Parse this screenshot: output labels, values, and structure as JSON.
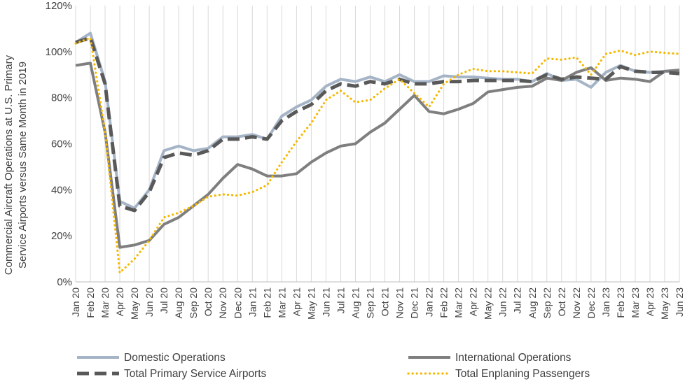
{
  "chart_data": {
    "type": "line",
    "title": "",
    "xlabel": "",
    "ylabel_lines": [
      "Commercial Aircraft Operations at U.S. Primary",
      "Service Airports versus Same Month in 2019"
    ],
    "ylim": [
      0,
      120
    ],
    "y_ticks": [
      0,
      20,
      40,
      60,
      80,
      100,
      120
    ],
    "y_tick_labels": [
      "0%",
      "20%",
      "40%",
      "60%",
      "80%",
      "100%",
      "120%"
    ],
    "grid": "vertical",
    "legend_position": "bottom",
    "categories": [
      "Jan 20",
      "Feb 20",
      "Mar 20",
      "Apr 20",
      "May 20",
      "Jun 20",
      "Jul 20",
      "Aug 20",
      "Sep 20",
      "Oct 20",
      "Nov 20",
      "Dec 20",
      "Jan 21",
      "Feb 21",
      "Mar 21",
      "Apr 21",
      "May 21",
      "Jun 21",
      "Jul 21",
      "Aug 21",
      "Sep 21",
      "Oct 21",
      "Nov 21",
      "Dec 21",
      "Jan 22",
      "Feb 22",
      "Mar 22",
      "Apr 22",
      "May 22",
      "Jun 22",
      "Jul 22",
      "Aug 22",
      "Sep 22",
      "Oct 22",
      "Nov 22",
      "Dec 22",
      "Jan 23",
      "Feb 23",
      "Mar 23",
      "Apr 23",
      "May 23",
      "Jun 23"
    ],
    "series": [
      {
        "name": "Domestic Operations",
        "color": "#a5b4c6",
        "style": "solid",
        "values": [
          104,
          108,
          87,
          35,
          32,
          40,
          57,
          59,
          57,
          58,
          63,
          63,
          64,
          62,
          72,
          76,
          79,
          85,
          88,
          87,
          89,
          87,
          90,
          87,
          87,
          89.5,
          89,
          89,
          88.5,
          88,
          88,
          87,
          90.5,
          87.5,
          88,
          84.5,
          91,
          94,
          91.5,
          91,
          91.5,
          91
        ]
      },
      {
        "name": "International Operations",
        "color": "#7f7f7f",
        "style": "solid",
        "values": [
          94,
          95,
          65,
          15,
          16,
          18,
          25,
          28,
          33,
          38,
          45,
          51,
          49,
          46,
          46,
          47,
          52,
          56,
          59,
          60,
          65,
          69,
          75,
          81,
          74,
          73,
          75,
          77.5,
          82.5,
          83.5,
          84.5,
          85,
          88.5,
          87.5,
          91,
          93,
          87.5,
          88.5,
          88,
          87,
          91.5,
          92
        ]
      },
      {
        "name": "Total Primary Service Airports",
        "color": "#595959",
        "style": "dash",
        "values": [
          104,
          106,
          86,
          33,
          31,
          39,
          54,
          56,
          55,
          57,
          62,
          62,
          63,
          62,
          70,
          74,
          77,
          83,
          86,
          85,
          87,
          86,
          88,
          86,
          86,
          87,
          87,
          87.5,
          87.5,
          87.5,
          87.5,
          87,
          90,
          88,
          89,
          88.5,
          88,
          93.5,
          91.5,
          91,
          91,
          90.5
        ]
      },
      {
        "name": "Total Enplaning Passengers",
        "color": "#f5b800",
        "style": "dot",
        "values": [
          103.5,
          106,
          65,
          4,
          10,
          18,
          28,
          30,
          33,
          37,
          38,
          37.5,
          39,
          42,
          52,
          61,
          69,
          79,
          83,
          78,
          79,
          84,
          88,
          82,
          76,
          86,
          90,
          92.5,
          91.5,
          91.5,
          91,
          90.5,
          97,
          96.5,
          97.5,
          90,
          99,
          100.5,
          98.5,
          100,
          99.5,
          99
        ]
      }
    ]
  }
}
